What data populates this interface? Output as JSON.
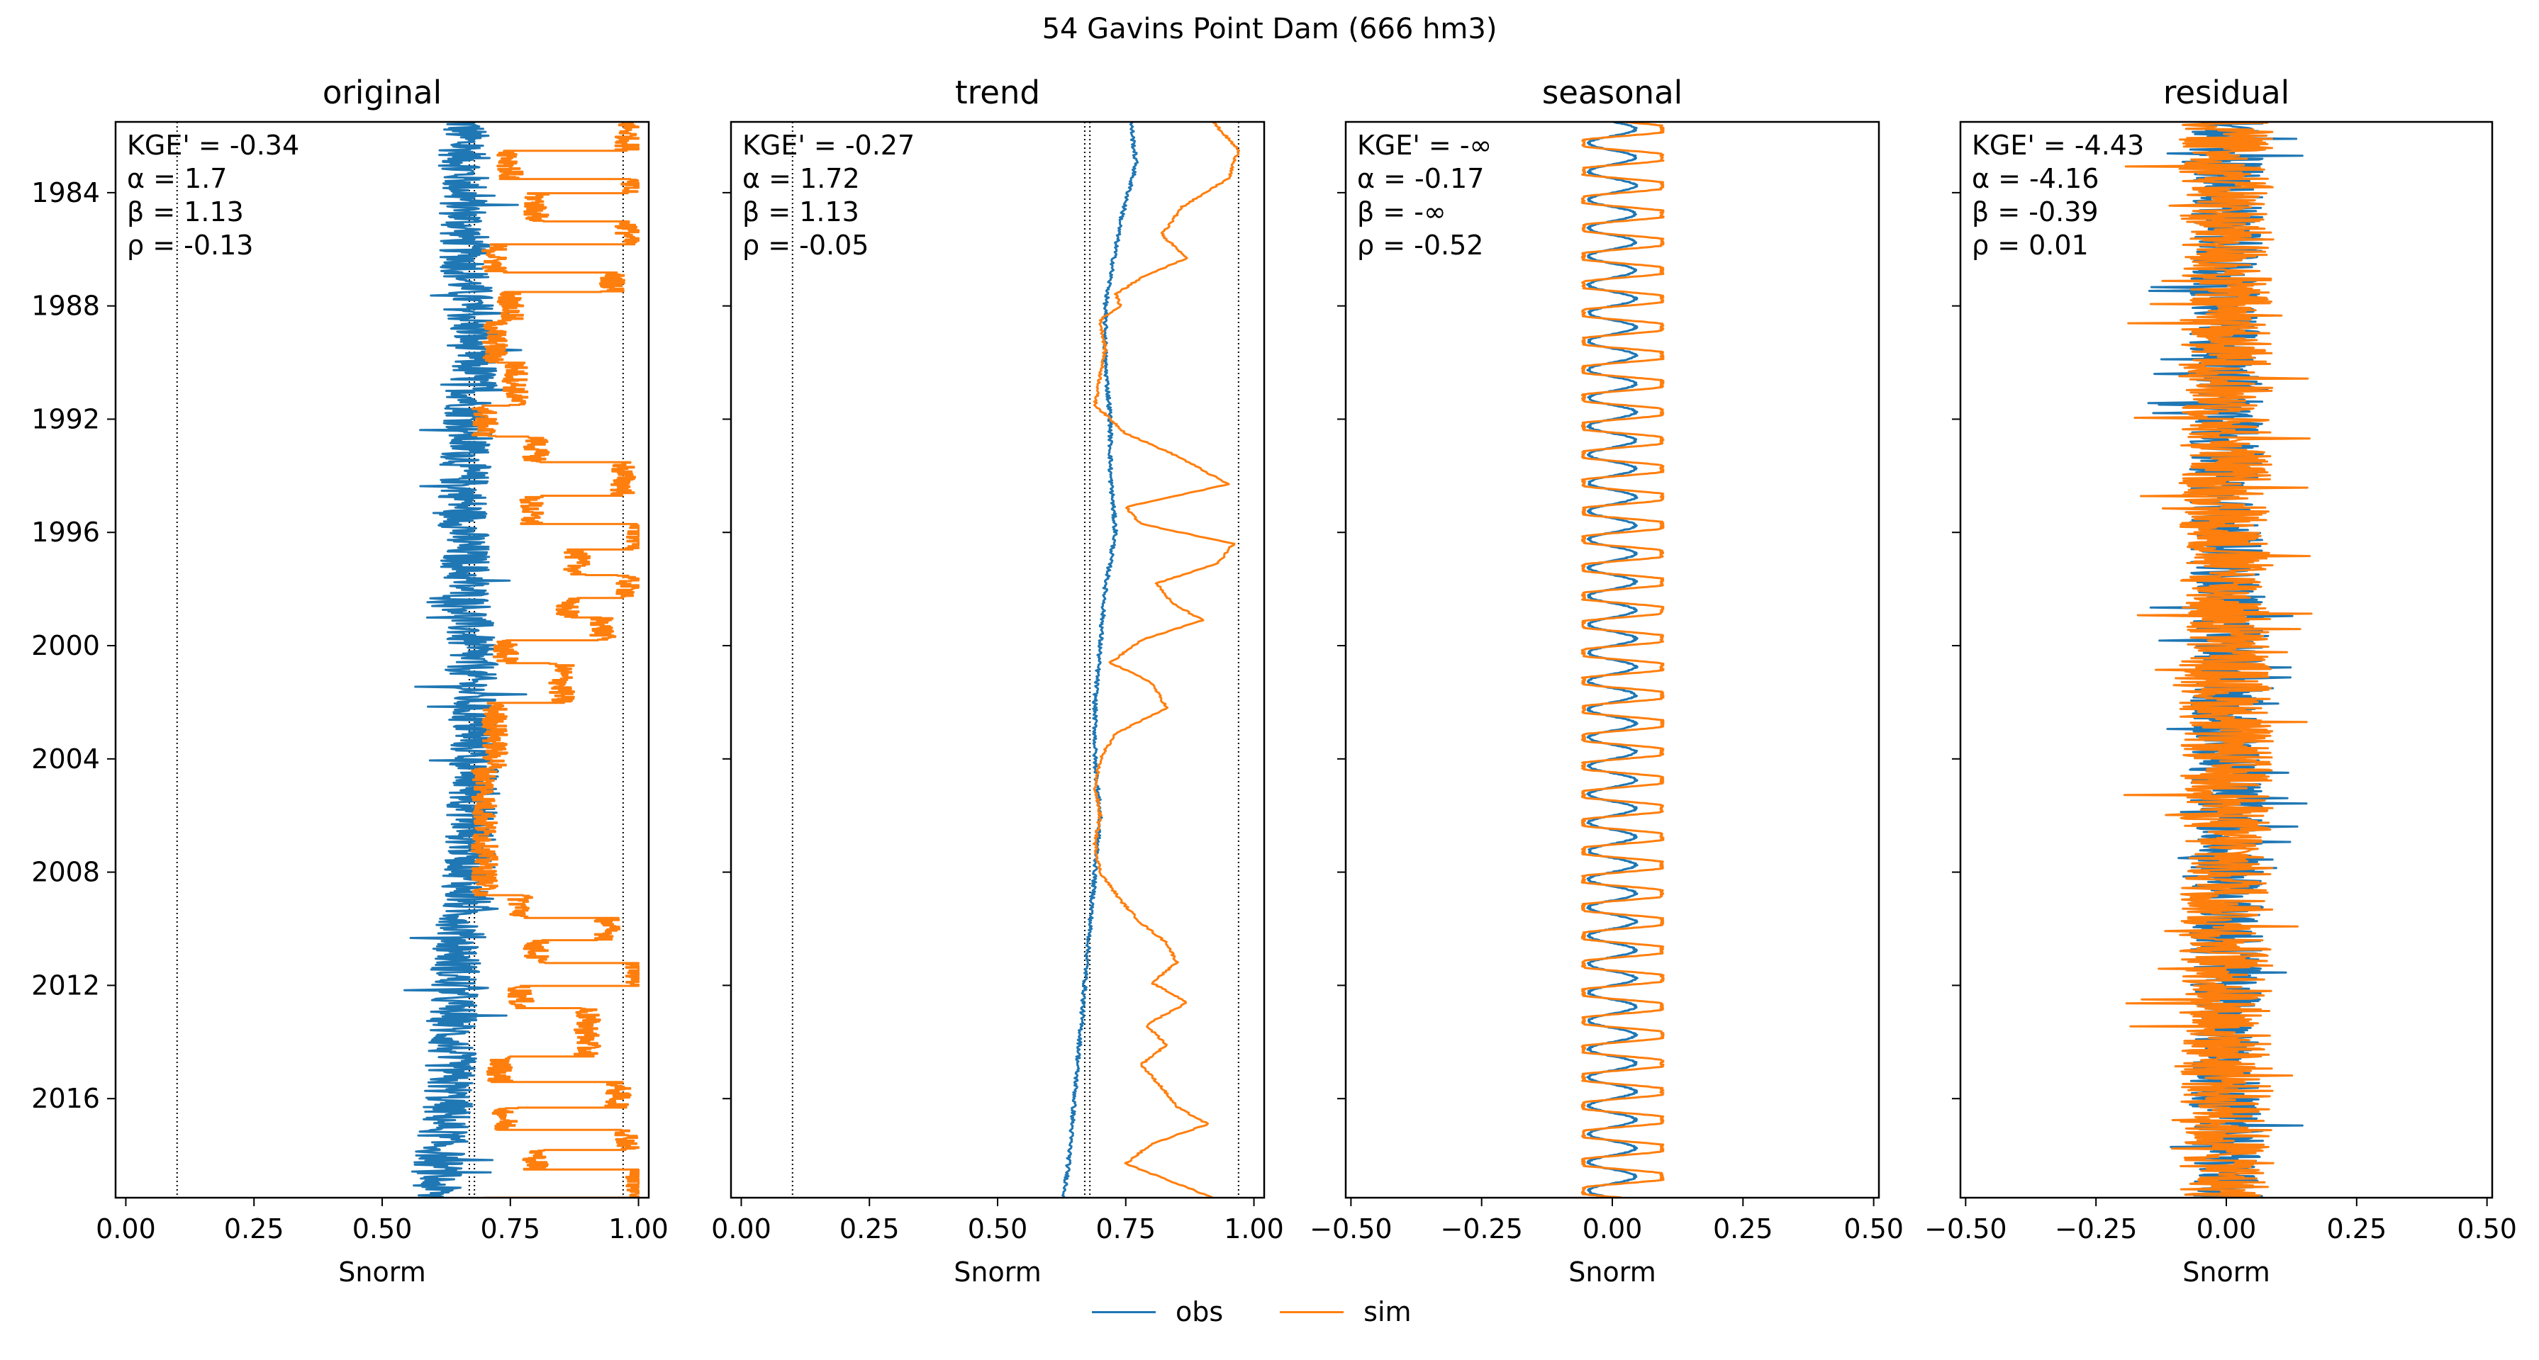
{
  "suptitle": "54  Gavins Point Dam (666 hm3)",
  "legend": [
    {
      "label": "obs",
      "color": "#1f77b4"
    },
    {
      "label": "sim",
      "color": "#ff7f0e"
    }
  ],
  "colors": {
    "obs": "#1f77b4",
    "sim": "#ff7f0e",
    "reference_line": "#000000"
  },
  "chart_data": [
    {
      "type": "line",
      "title": "original",
      "xlabel": "Snorm",
      "ylabel": "",
      "orientation": "vertical-time",
      "xlim": [
        -0.02,
        1.02
      ],
      "ylim": [
        1981.5,
        2019.5
      ],
      "xticks": [
        0.0,
        0.25,
        0.5,
        0.75,
        1.0
      ],
      "xtick_labels": [
        "0.00",
        "0.25",
        "0.50",
        "0.75",
        "1.00"
      ],
      "yticks": [
        1984,
        1988,
        1992,
        1996,
        2000,
        2004,
        2008,
        2012,
        2016
      ],
      "reference_lines": [
        0.1,
        0.67,
        0.68,
        0.97
      ],
      "stats": [
        "KGE' = -0.34",
        "α = 1.7",
        "β = 1.13",
        "ρ = -0.13"
      ],
      "series": [
        {
          "name": "obs",
          "style": "noisy",
          "t": [
            1982,
            1986,
            1990,
            1994,
            1996,
            2000,
            2004,
            2008,
            2012,
            2016,
            2019.5
          ],
          "x": [
            0.66,
            0.66,
            0.68,
            0.66,
            0.66,
            0.67,
            0.68,
            0.67,
            0.64,
            0.63,
            0.6
          ],
          "amplitude": 0.05
        },
        {
          "name": "sim",
          "style": "step",
          "t": [
            1981.5,
            1982.5,
            1983.5,
            1984,
            1985,
            1985.8,
            1986.8,
            1987.5,
            1988.5,
            1990,
            1991.5,
            1992.6,
            1993.5,
            1994.7,
            1995.7,
            1996.6,
            1997.5,
            1998.3,
            1999,
            1999.8,
            2000.6,
            2002,
            2004.3,
            2007,
            2008.8,
            2009.6,
            2010.4,
            2011.2,
            2012,
            2012.8,
            2014.5,
            2015.4,
            2016.3,
            2017.1,
            2017.8,
            2018.5,
            2019.5
          ],
          "x": [
            0.98,
            0.75,
            0.98,
            0.8,
            0.98,
            0.72,
            0.95,
            0.75,
            0.72,
            0.76,
            0.7,
            0.8,
            0.97,
            0.79,
            1.0,
            0.88,
            0.98,
            0.86,
            0.93,
            0.74,
            0.85,
            0.72,
            0.7,
            0.7,
            0.77,
            0.94,
            0.8,
            1.0,
            0.77,
            0.9,
            0.73,
            0.96,
            0.74,
            0.98,
            0.8,
            1.0,
            0.72
          ],
          "amplitude": 0.025
        }
      ]
    },
    {
      "type": "line",
      "title": "trend",
      "xlabel": "Snorm",
      "ylabel": "",
      "orientation": "vertical-time",
      "xlim": [
        -0.02,
        1.02
      ],
      "ylim": [
        1981.5,
        2019.5
      ],
      "xticks": [
        0.0,
        0.25,
        0.5,
        0.75,
        1.0
      ],
      "xtick_labels": [
        "0.00",
        "0.25",
        "0.50",
        "0.75",
        "1.00"
      ],
      "yticks": [
        1984,
        1988,
        1992,
        1996,
        2000,
        2004,
        2008,
        2012,
        2016
      ],
      "reference_lines": [
        0.1,
        0.67,
        0.68,
        0.97
      ],
      "stats": [
        "KGE' = -0.27",
        "α = 1.72",
        "β = 1.13",
        "ρ = -0.05"
      ],
      "series": [
        {
          "name": "obs",
          "style": "smooth",
          "t": [
            1981.5,
            1983,
            1985,
            1987,
            1988,
            1990,
            1992,
            1994,
            1996,
            1998,
            2000,
            2002,
            2004,
            2006,
            2008,
            2010,
            2012,
            2014,
            2016,
            2018,
            2019.5
          ],
          "x": [
            0.76,
            0.77,
            0.74,
            0.72,
            0.71,
            0.71,
            0.72,
            0.72,
            0.73,
            0.71,
            0.7,
            0.69,
            0.69,
            0.7,
            0.69,
            0.68,
            0.67,
            0.66,
            0.65,
            0.64,
            0.63
          ],
          "amplitude": 0.004
        },
        {
          "name": "sim",
          "style": "smooth",
          "t": [
            1981.5,
            1982.5,
            1983.5,
            1984.5,
            1985.5,
            1986.3,
            1987,
            1987.6,
            1988,
            1988.5,
            1989.5,
            1990.5,
            1991.5,
            1992.5,
            1993.3,
            1994.3,
            1995.1,
            1995.7,
            1996.4,
            1997.1,
            1997.8,
            1998.5,
            1999.1,
            1999.8,
            2000.6,
            2001.3,
            2002.2,
            2003.1,
            2004,
            2005,
            2006,
            2007,
            2008,
            2009,
            2009.8,
            2010.5,
            2011.2,
            2011.9,
            2012.6,
            2013.4,
            2014.1,
            2014.8,
            2015.6,
            2016.3,
            2016.9,
            2017.6,
            2018.3,
            2019,
            2019.5
          ],
          "x": [
            0.92,
            0.97,
            0.95,
            0.86,
            0.82,
            0.87,
            0.78,
            0.73,
            0.74,
            0.7,
            0.71,
            0.7,
            0.69,
            0.75,
            0.85,
            0.95,
            0.75,
            0.78,
            0.96,
            0.93,
            0.81,
            0.84,
            0.9,
            0.78,
            0.72,
            0.8,
            0.83,
            0.73,
            0.7,
            0.69,
            0.7,
            0.69,
            0.7,
            0.74,
            0.78,
            0.83,
            0.85,
            0.8,
            0.87,
            0.79,
            0.83,
            0.78,
            0.82,
            0.85,
            0.91,
            0.8,
            0.75,
            0.85,
            0.92
          ],
          "amplitude": 0.003
        }
      ]
    },
    {
      "type": "line",
      "title": "seasonal",
      "xlabel": "Snorm",
      "ylabel": "",
      "orientation": "vertical-time",
      "xlim": [
        -0.51,
        0.51
      ],
      "ylim": [
        1981.5,
        2019.5
      ],
      "xticks": [
        -0.5,
        -0.25,
        0.0,
        0.25,
        0.5
      ],
      "xtick_labels": [
        "−0.50",
        "−0.25",
        "0.00",
        "0.25",
        "0.50"
      ],
      "yticks": [
        1984,
        1988,
        1992,
        1996,
        2000,
        2004,
        2008,
        2012,
        2016
      ],
      "reference_lines": [],
      "stats": [
        "KGE' = -∞",
        "α = -0.17",
        "β = -∞",
        "ρ = -0.52"
      ],
      "series": [
        {
          "name": "obs",
          "style": "periodic",
          "center": 0.0,
          "amplitude": 0.045,
          "period_years": 1
        },
        {
          "name": "sim",
          "style": "periodic",
          "center": 0.02,
          "amplitude": 0.075,
          "period_years": 1
        }
      ]
    },
    {
      "type": "line",
      "title": "residual",
      "xlabel": "Snorm",
      "ylabel": "",
      "orientation": "vertical-time",
      "xlim": [
        -0.51,
        0.51
      ],
      "ylim": [
        1981.5,
        2019.5
      ],
      "xticks": [
        -0.5,
        -0.25,
        0.0,
        0.25,
        0.5
      ],
      "xtick_labels": [
        "−0.50",
        "−0.25",
        "0.00",
        "0.25",
        "0.50"
      ],
      "yticks": [
        1984,
        1988,
        1992,
        1996,
        2000,
        2004,
        2008,
        2012,
        2016
      ],
      "reference_lines": [],
      "stats": [
        "KGE' = -4.43",
        "α = -4.16",
        "β = -0.39",
        "ρ = 0.01"
      ],
      "series": [
        {
          "name": "obs",
          "style": "noisy",
          "center": 0.0,
          "amplitude": 0.07,
          "max_abs": 0.3
        },
        {
          "name": "sim",
          "style": "noisy",
          "center": 0.0,
          "amplitude": 0.09,
          "max_abs": 0.2
        }
      ]
    }
  ]
}
